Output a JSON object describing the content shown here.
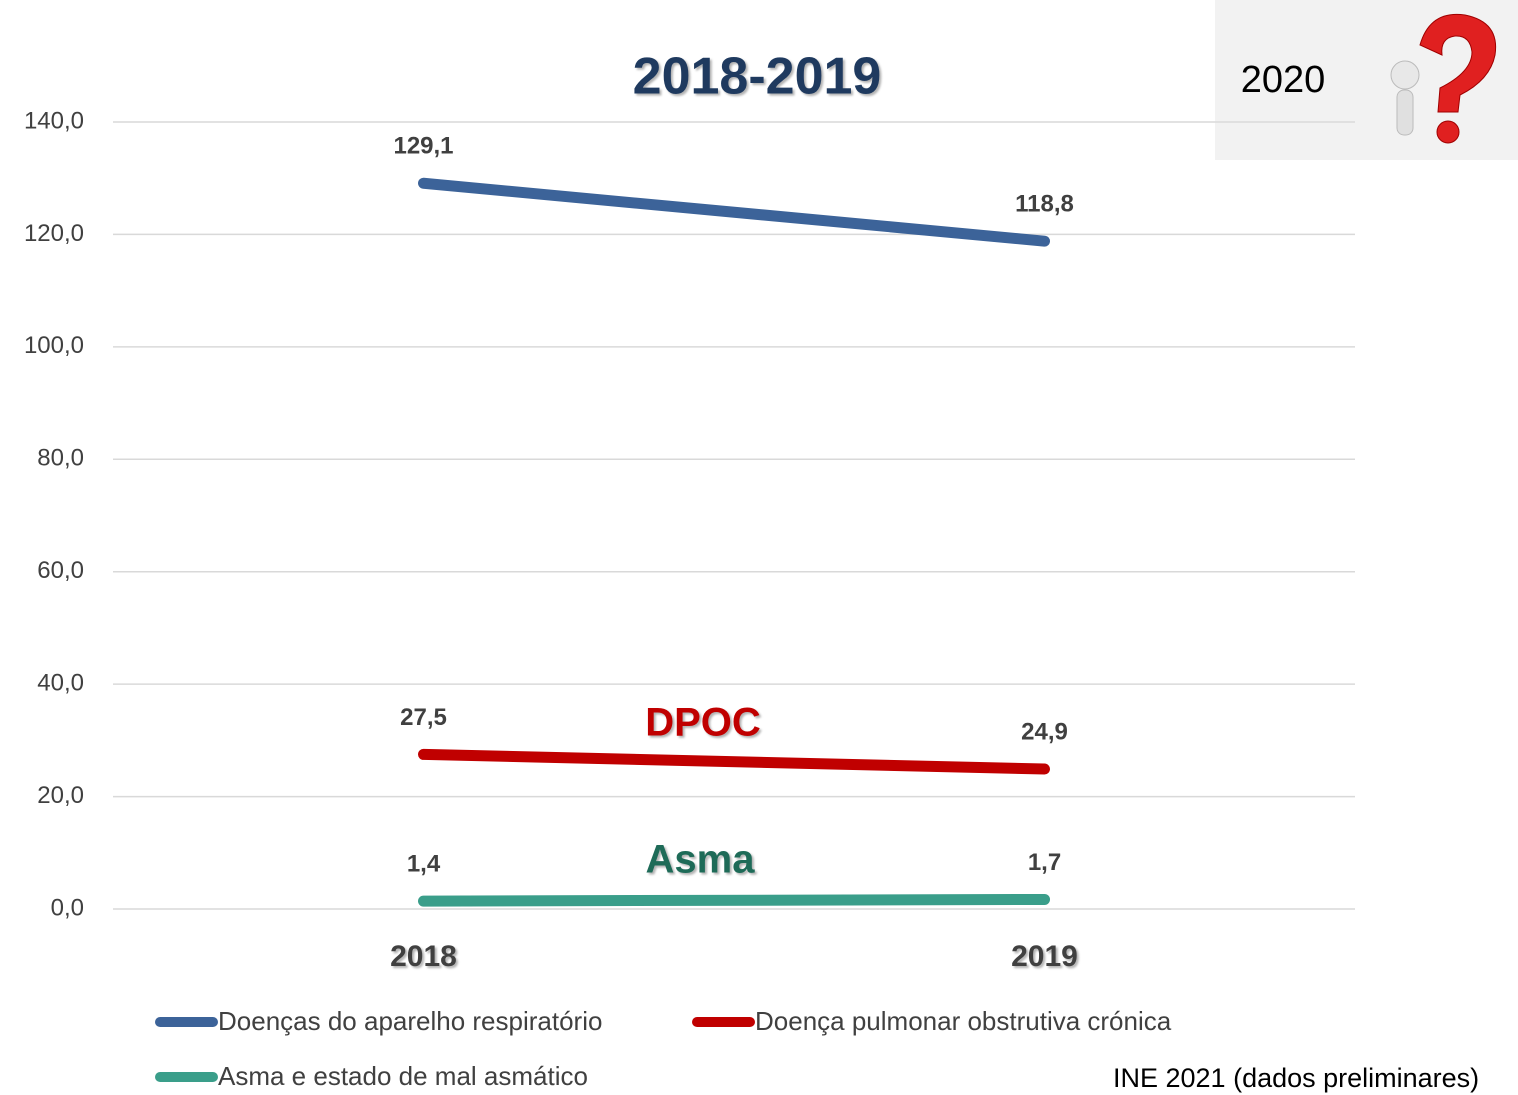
{
  "chart_data": {
    "type": "line",
    "title": "2018-2019",
    "categories": [
      "2018",
      "2019"
    ],
    "series": [
      {
        "name": "Doenças do aparelho respiratório",
        "color": "#3c6399",
        "values": [
          129.1,
          118.8
        ],
        "value_labels": [
          "129,1",
          "118,8"
        ]
      },
      {
        "name": "Doença pulmonar obstrutiva crónica",
        "color": "#c00000",
        "values": [
          27.5,
          24.9
        ],
        "value_labels": [
          "27,5",
          "24,9"
        ]
      },
      {
        "name": "Asma e estado de mal asmático",
        "color": "#3a9e8a",
        "values": [
          1.4,
          1.7
        ],
        "value_labels": [
          "1,4",
          "1,7"
        ]
      }
    ],
    "ylim": [
      0,
      140
    ],
    "yticks": [
      {
        "value": 0,
        "label": "0,0"
      },
      {
        "value": 20,
        "label": "20,0"
      },
      {
        "value": 40,
        "label": "40,0"
      },
      {
        "value": 60,
        "label": "60,0"
      },
      {
        "value": 80,
        "label": "80,0"
      },
      {
        "value": 100,
        "label": "100,0"
      },
      {
        "value": 120,
        "label": "120,0"
      },
      {
        "value": 140,
        "label": "140,0"
      }
    ],
    "grid": true,
    "annotations": [
      {
        "text": "DPOC",
        "color": "#c00000"
      },
      {
        "text": "Asma",
        "color": "#1e6b58"
      },
      {
        "text": "2020"
      },
      {
        "text": "INE 2021 (dados preliminares)"
      }
    ]
  }
}
